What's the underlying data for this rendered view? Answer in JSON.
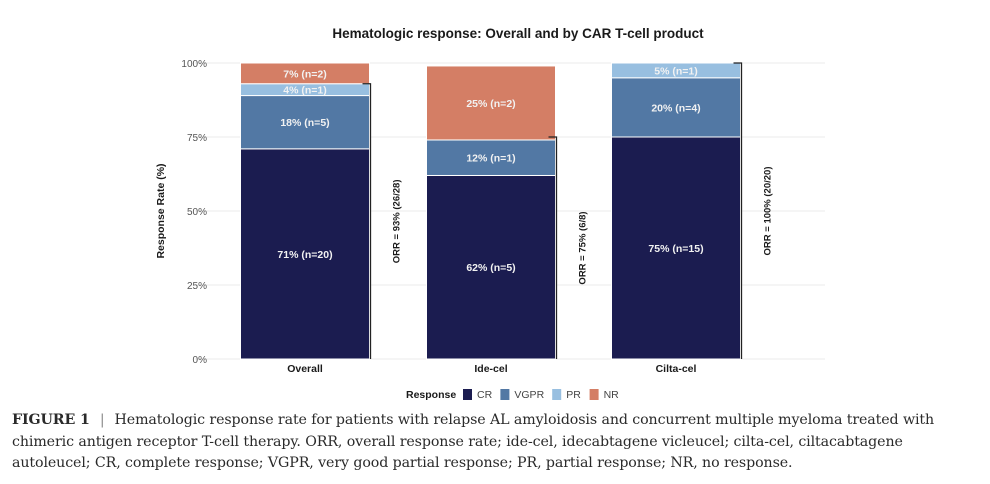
{
  "chart_data": {
    "type": "bar",
    "stacked": true,
    "title": "Hematologic response: Overall and by CAR T-cell product",
    "xlabel": "",
    "ylabel": "Response Rate (%)",
    "ylim": [
      0,
      100
    ],
    "yticks": [
      0,
      25,
      50,
      75,
      100
    ],
    "ytick_labels": [
      "0%",
      "25%",
      "50%",
      "75%",
      "100%"
    ],
    "grid": true,
    "categories": [
      "Overall",
      "Ide-cel",
      "Cilta-cel"
    ],
    "series": [
      {
        "name": "CR",
        "color": "#1b1c50",
        "values": [
          71,
          62,
          75
        ],
        "labels": [
          "71% (n=20)",
          "62% (n=5)",
          "75% (n=15)"
        ]
      },
      {
        "name": "VGPR",
        "color": "#5278a4",
        "values": [
          18,
          12,
          20
        ],
        "labels": [
          "18% (n=5)",
          "12% (n=1)",
          "20% (n=4)"
        ]
      },
      {
        "name": "PR",
        "color": "#98bfe0",
        "values": [
          4,
          0,
          5
        ],
        "labels": [
          "4% (n=1)",
          "",
          "5% (n=1)"
        ]
      },
      {
        "name": "NR",
        "color": "#d47e65",
        "values": [
          7,
          25,
          0
        ],
        "labels": [
          "7% (n=2)",
          "25% (n=2)",
          ""
        ]
      }
    ],
    "orr": [
      {
        "category": "Overall",
        "value": 93,
        "label": "ORR = 93% (26/28)"
      },
      {
        "category": "Ide-cel",
        "value": 75,
        "label": "ORR = 75% (6/8)"
      },
      {
        "category": "Cilta-cel",
        "value": 100,
        "label": "ORR = 100% (20/20)"
      }
    ],
    "legend": {
      "title": "Response",
      "entries": [
        "CR",
        "VGPR",
        "PR",
        "NR"
      ],
      "position": "bottom"
    }
  },
  "caption": {
    "figure_label": "FIGURE 1",
    "separator": "|",
    "text": "Hematologic response rate for patients with relapse AL amyloidosis and concurrent multiple myeloma treated with chimeric antigen receptor T-cell therapy. ORR, overall response rate; ide-cel, idecabtagene vicleucel; cilta-cel, ciltacabtagene autoleucel; CR, complete response; VGPR, very good partial response; PR, partial response; NR, no response."
  }
}
